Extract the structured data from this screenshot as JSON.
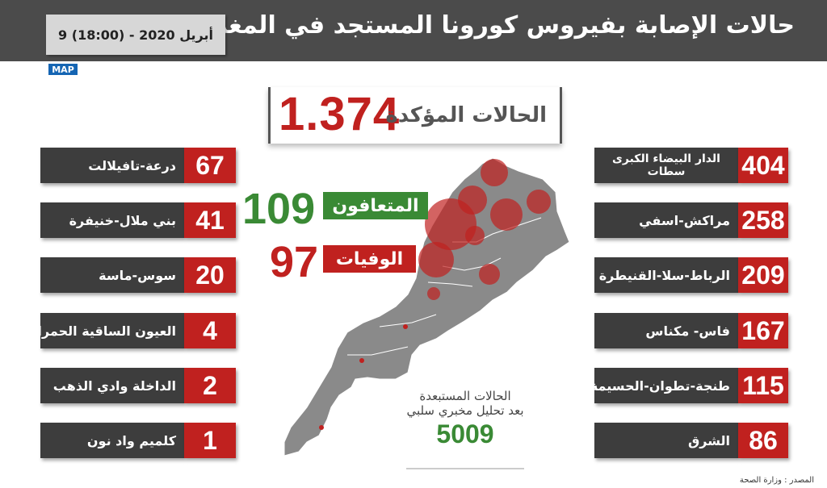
{
  "header": {
    "title": "حالات الإصابة بفيروس كورونا المستجد في المغرب",
    "date": "9 أبريل 2020 - (18:00)"
  },
  "logo_text": "MAP",
  "confirmed": {
    "label": "الحالات المؤكدة",
    "value": "1.374"
  },
  "recovered": {
    "label": "المتعافون",
    "value": "109",
    "color": "#3a8a35"
  },
  "deaths": {
    "label": "الوفيات",
    "value": "97",
    "color": "#c0211f"
  },
  "regions_right": [
    {
      "name": "الدار البيضاء الكبرى سطات",
      "line1": "الدار البيضاء الكبرى",
      "line2": "سطات",
      "value": "404"
    },
    {
      "name": "مراكش-اسفي",
      "value": "258"
    },
    {
      "name": "الرباط-سلا-القنيطرة",
      "value": "209"
    },
    {
      "name": "فاس- مكناس",
      "value": "167"
    },
    {
      "name": "طنجة-تطوان-الحسيمة",
      "value": "115"
    },
    {
      "name": "الشرق",
      "value": "86"
    }
  ],
  "regions_left": [
    {
      "name": "درعة-تافيلالت",
      "value": "67"
    },
    {
      "name": "بني ملال-خنيفرة",
      "value": "41"
    },
    {
      "name": "سوس-ماسة",
      "value": "20"
    },
    {
      "name": "العيون الساقية الحمراء",
      "value": "4"
    },
    {
      "name": "الداخلة وادي الذهب",
      "value": "2"
    },
    {
      "name": "كلميم واد نون",
      "value": "1"
    }
  ],
  "excluded": {
    "line1": "الحالات المستبعدة",
    "line2": "بعد تحليل مخبري سلبي",
    "value": "5009"
  },
  "source": "المصدر : وزارة الصحة",
  "colors": {
    "header": "#4b4b4b",
    "red": "#c0211f",
    "green": "#3a8a35",
    "dark": "#3d3d3d",
    "map": "#8a8a8a"
  }
}
